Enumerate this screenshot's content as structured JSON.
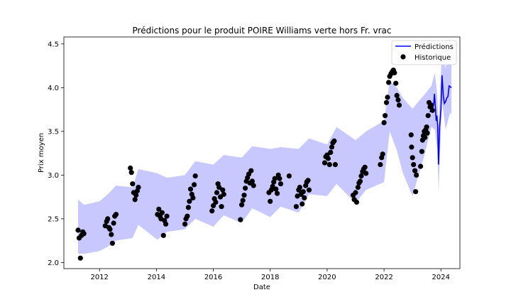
{
  "chart_data": {
    "type": "line",
    "title": "Prédictions pour le produit POIRE Williams verte hors Fr. vrac",
    "xlabel": "Date",
    "ylabel": "Prix moyen",
    "xlim": [
      "2010-10-01",
      "2024-09-01"
    ],
    "ylim": [
      1.93,
      4.58
    ],
    "x_ticks": [
      "2012",
      "2014",
      "2016",
      "2018",
      "2020",
      "2022",
      "2024"
    ],
    "y_ticks": [
      "2.0",
      "2.5",
      "3.0",
      "3.5",
      "4.0",
      "4.5"
    ],
    "grid": false,
    "legend_position": "top-right",
    "colors": {
      "prediction_line": "#0000ff",
      "band_fill": "#c8c8ff",
      "history_points": "#000000"
    },
    "legend": [
      {
        "label": "Prédictions",
        "kind": "line",
        "color": "#0000ff"
      },
      {
        "label": "Historique",
        "kind": "point",
        "color": "#000000"
      }
    ],
    "series": [
      {
        "name": "Historique",
        "kind": "scatter",
        "points": [
          [
            "2011-04-01",
            2.37
          ],
          [
            "2011-04-15",
            2.28
          ],
          [
            "2011-05-01",
            2.05
          ],
          [
            "2011-05-15",
            2.31
          ],
          [
            "2011-06-01",
            2.35
          ],
          [
            "2011-06-15",
            2.33
          ],
          [
            "2012-03-15",
            2.42
          ],
          [
            "2012-04-01",
            2.47
          ],
          [
            "2012-04-15",
            2.5
          ],
          [
            "2012-05-01",
            2.4
          ],
          [
            "2012-05-15",
            2.38
          ],
          [
            "2012-06-01",
            2.32
          ],
          [
            "2012-06-15",
            2.22
          ],
          [
            "2012-07-01",
            2.45
          ],
          [
            "2012-07-15",
            2.53
          ],
          [
            "2012-08-01",
            2.55
          ],
          [
            "2013-02-01",
            3.08
          ],
          [
            "2013-02-15",
            3.03
          ],
          [
            "2013-03-01",
            2.9
          ],
          [
            "2013-03-15",
            2.8
          ],
          [
            "2013-04-01",
            2.72
          ],
          [
            "2013-04-15",
            2.77
          ],
          [
            "2013-05-01",
            2.82
          ],
          [
            "2013-05-15",
            2.86
          ],
          [
            "2014-01-15",
            2.55
          ],
          [
            "2014-02-01",
            2.61
          ],
          [
            "2014-02-15",
            2.53
          ],
          [
            "2014-03-01",
            2.5
          ],
          [
            "2014-03-15",
            2.57
          ],
          [
            "2014-04-01",
            2.31
          ],
          [
            "2014-04-15",
            2.48
          ],
          [
            "2014-05-01",
            2.44
          ],
          [
            "2014-05-15",
            2.53
          ],
          [
            "2015-01-01",
            2.44
          ],
          [
            "2015-01-15",
            2.5
          ],
          [
            "2015-02-01",
            2.53
          ],
          [
            "2015-02-15",
            2.63
          ],
          [
            "2015-03-01",
            2.7
          ],
          [
            "2015-03-15",
            2.84
          ],
          [
            "2015-04-01",
            2.78
          ],
          [
            "2015-04-15",
            2.74
          ],
          [
            "2015-05-01",
            2.89
          ],
          [
            "2015-05-15",
            2.99
          ],
          [
            "2015-12-15",
            2.59
          ],
          [
            "2016-01-01",
            2.65
          ],
          [
            "2016-01-15",
            2.73
          ],
          [
            "2016-02-01",
            2.69
          ],
          [
            "2016-02-15",
            2.8
          ],
          [
            "2016-03-01",
            2.9
          ],
          [
            "2016-03-15",
            2.86
          ],
          [
            "2016-04-01",
            2.75
          ],
          [
            "2016-04-15",
            2.64
          ],
          [
            "2016-05-01",
            2.83
          ],
          [
            "2016-05-15",
            2.78
          ],
          [
            "2016-12-15",
            2.49
          ],
          [
            "2017-01-01",
            2.66
          ],
          [
            "2017-01-15",
            2.71
          ],
          [
            "2017-02-01",
            2.77
          ],
          [
            "2017-02-15",
            2.85
          ],
          [
            "2017-03-01",
            2.93
          ],
          [
            "2017-03-15",
            2.97
          ],
          [
            "2017-04-01",
            3.01
          ],
          [
            "2017-04-15",
            2.91
          ],
          [
            "2017-05-01",
            3.05
          ],
          [
            "2017-05-15",
            2.93
          ],
          [
            "2017-06-01",
            2.88
          ],
          [
            "2017-12-15",
            2.8
          ],
          [
            "2018-01-01",
            2.7
          ],
          [
            "2018-01-15",
            2.83
          ],
          [
            "2018-02-01",
            2.87
          ],
          [
            "2018-02-15",
            2.92
          ],
          [
            "2018-03-01",
            2.96
          ],
          [
            "2018-03-15",
            2.84
          ],
          [
            "2018-04-01",
            2.79
          ],
          [
            "2018-04-15",
            3.0
          ],
          [
            "2018-05-01",
            2.96
          ],
          [
            "2018-05-15",
            2.9
          ],
          [
            "2018-09-01",
            2.99
          ],
          [
            "2018-12-01",
            2.64
          ],
          [
            "2018-12-15",
            2.76
          ],
          [
            "2019-01-01",
            2.83
          ],
          [
            "2019-01-15",
            2.86
          ],
          [
            "2019-02-01",
            2.78
          ],
          [
            "2019-02-15",
            2.67
          ],
          [
            "2019-03-01",
            2.81
          ],
          [
            "2019-03-15",
            2.74
          ],
          [
            "2019-04-01",
            2.88
          ],
          [
            "2019-04-15",
            2.92
          ],
          [
            "2019-05-01",
            2.94
          ],
          [
            "2019-05-15",
            2.83
          ],
          [
            "2019-12-01",
            3.14
          ],
          [
            "2019-12-15",
            3.21
          ],
          [
            "2020-01-01",
            3.23
          ],
          [
            "2020-01-15",
            3.19
          ],
          [
            "2020-02-01",
            3.12
          ],
          [
            "2020-02-15",
            3.26
          ],
          [
            "2020-03-01",
            3.32
          ],
          [
            "2020-03-15",
            3.37
          ],
          [
            "2020-04-01",
            3.39
          ],
          [
            "2020-04-15",
            3.12
          ],
          [
            "2020-12-01",
            2.77
          ],
          [
            "2020-12-15",
            2.72
          ],
          [
            "2021-01-01",
            2.8
          ],
          [
            "2021-01-15",
            2.69
          ],
          [
            "2021-02-01",
            2.86
          ],
          [
            "2021-02-15",
            2.91
          ],
          [
            "2021-03-01",
            2.93
          ],
          [
            "2021-03-15",
            2.99
          ],
          [
            "2021-04-01",
            3.04
          ],
          [
            "2021-04-15",
            3.07
          ],
          [
            "2021-05-01",
            3.09
          ],
          [
            "2021-05-15",
            3.02
          ],
          [
            "2021-11-15",
            3.12
          ],
          [
            "2021-12-01",
            3.2
          ],
          [
            "2021-12-15",
            3.24
          ],
          [
            "2022-01-01",
            3.6
          ],
          [
            "2022-01-15",
            3.68
          ],
          [
            "2022-02-01",
            3.83
          ],
          [
            "2022-02-15",
            3.89
          ],
          [
            "2022-03-01",
            4.06
          ],
          [
            "2022-03-15",
            4.13
          ],
          [
            "2022-04-01",
            4.16
          ],
          [
            "2022-04-15",
            4.18
          ],
          [
            "2022-05-01",
            4.2
          ],
          [
            "2022-05-15",
            4.17
          ],
          [
            "2022-06-01",
            4.05
          ],
          [
            "2022-06-15",
            3.91
          ],
          [
            "2022-07-01",
            3.86
          ],
          [
            "2022-07-15",
            3.8
          ],
          [
            "2022-12-15",
            3.46
          ],
          [
            "2022-12-20",
            3.32
          ],
          [
            "2023-01-01",
            3.2
          ],
          [
            "2023-01-15",
            3.12
          ],
          [
            "2023-02-01",
            3.05
          ],
          [
            "2023-02-10",
            2.81
          ],
          [
            "2023-02-20",
            3.0
          ],
          [
            "2023-04-15",
            3.1
          ],
          [
            "2023-05-01",
            3.27
          ],
          [
            "2023-05-10",
            3.4
          ],
          [
            "2023-05-20",
            3.45
          ],
          [
            "2023-06-01",
            3.5
          ],
          [
            "2023-06-10",
            3.43
          ],
          [
            "2023-06-20",
            3.52
          ],
          [
            "2023-07-01",
            3.55
          ],
          [
            "2023-07-10",
            3.48
          ],
          [
            "2023-07-20",
            3.68
          ],
          [
            "2023-08-01",
            3.83
          ],
          [
            "2023-08-15",
            3.78
          ],
          [
            "2023-09-01",
            3.8
          ],
          [
            "2023-09-15",
            3.74
          ]
        ]
      },
      {
        "name": "Prédictions",
        "kind": "line",
        "points": [
          [
            "2023-08-15",
            3.72
          ],
          [
            "2023-09-01",
            3.78
          ],
          [
            "2023-09-15",
            3.75
          ],
          [
            "2023-10-01",
            3.82
          ],
          [
            "2023-10-10",
            3.93
          ],
          [
            "2023-10-20",
            3.8
          ],
          [
            "2023-11-01",
            3.62
          ],
          [
            "2023-11-10",
            3.68
          ],
          [
            "2023-11-20",
            3.55
          ],
          [
            "2023-12-01",
            3.12
          ],
          [
            "2023-12-15",
            3.55
          ],
          [
            "2024-01-01",
            3.75
          ],
          [
            "2024-01-15",
            4.14
          ],
          [
            "2024-02-01",
            3.9
          ],
          [
            "2024-02-15",
            3.82
          ],
          [
            "2024-03-01",
            3.84
          ],
          [
            "2024-03-15",
            3.88
          ],
          [
            "2024-04-01",
            3.9
          ],
          [
            "2024-04-15",
            4.02
          ],
          [
            "2024-05-01",
            4.01
          ],
          [
            "2024-05-15",
            4.0
          ]
        ]
      },
      {
        "name": "",
        "kind": "band",
        "upper": [
          [
            "2011-04-01",
            2.72
          ],
          [
            "2011-06-15",
            2.66
          ],
          [
            "2012-01-01",
            2.7
          ],
          [
            "2012-04-15",
            2.78
          ],
          [
            "2012-08-01",
            2.88
          ],
          [
            "2013-03-01",
            2.86
          ],
          [
            "2013-05-15",
            3.07
          ],
          [
            "2014-01-15",
            3.02
          ],
          [
            "2014-05-15",
            2.97
          ],
          [
            "2015-01-01",
            3.0
          ],
          [
            "2015-05-15",
            3.16
          ],
          [
            "2016-01-01",
            3.12
          ],
          [
            "2016-05-15",
            3.23
          ],
          [
            "2017-01-01",
            3.2
          ],
          [
            "2017-05-15",
            3.33
          ],
          [
            "2018-01-01",
            3.3
          ],
          [
            "2018-05-15",
            3.32
          ],
          [
            "2019-01-01",
            3.3
          ],
          [
            "2019-05-15",
            3.42
          ],
          [
            "2020-01-01",
            3.35
          ],
          [
            "2020-05-01",
            3.55
          ],
          [
            "2021-01-01",
            3.4
          ],
          [
            "2021-05-15",
            3.5
          ],
          [
            "2022-01-01",
            3.62
          ],
          [
            "2022-03-15",
            4.08
          ],
          [
            "2022-06-15",
            4.0
          ],
          [
            "2022-09-01",
            3.88
          ],
          [
            "2023-01-01",
            3.76
          ],
          [
            "2023-06-01",
            3.92
          ],
          [
            "2023-09-01",
            4.02
          ],
          [
            "2023-10-15",
            4.17
          ],
          [
            "2023-11-15",
            3.92
          ],
          [
            "2023-12-01",
            3.55
          ],
          [
            "2024-01-15",
            4.42
          ],
          [
            "2024-03-01",
            4.22
          ],
          [
            "2024-05-01",
            4.56
          ],
          [
            "2024-05-15",
            4.45
          ]
        ],
        "lower": [
          [
            "2024-05-15",
            3.68
          ],
          [
            "2024-05-01",
            3.72
          ],
          [
            "2024-03-01",
            3.52
          ],
          [
            "2024-01-15",
            3.85
          ],
          [
            "2023-12-01",
            2.81
          ],
          [
            "2023-11-15",
            3.3
          ],
          [
            "2023-10-15",
            3.52
          ],
          [
            "2023-09-01",
            3.55
          ],
          [
            "2023-06-01",
            3.22
          ],
          [
            "2023-01-01",
            2.76
          ],
          [
            "2022-09-01",
            3.02
          ],
          [
            "2022-06-15",
            3.28
          ],
          [
            "2022-03-15",
            3.5
          ],
          [
            "2022-01-01",
            2.92
          ],
          [
            "2021-05-15",
            2.83
          ],
          [
            "2021-01-01",
            2.68
          ],
          [
            "2020-05-01",
            2.9
          ],
          [
            "2020-01-01",
            2.76
          ],
          [
            "2019-05-15",
            2.78
          ],
          [
            "2019-01-01",
            2.57
          ],
          [
            "2018-05-15",
            2.64
          ],
          [
            "2018-01-01",
            2.52
          ],
          [
            "2017-05-15",
            2.62
          ],
          [
            "2017-01-01",
            2.45
          ],
          [
            "2016-05-15",
            2.54
          ],
          [
            "2016-01-01",
            2.41
          ],
          [
            "2015-05-15",
            2.5
          ],
          [
            "2015-01-01",
            2.38
          ],
          [
            "2014-05-15",
            2.35
          ],
          [
            "2014-01-15",
            2.26
          ],
          [
            "2013-05-15",
            2.43
          ],
          [
            "2013-03-01",
            2.28
          ],
          [
            "2012-08-01",
            2.25
          ],
          [
            "2012-04-15",
            2.18
          ],
          [
            "2012-01-01",
            2.13
          ],
          [
            "2011-06-15",
            2.1
          ],
          [
            "2011-04-01",
            2.1
          ]
        ]
      }
    ]
  }
}
